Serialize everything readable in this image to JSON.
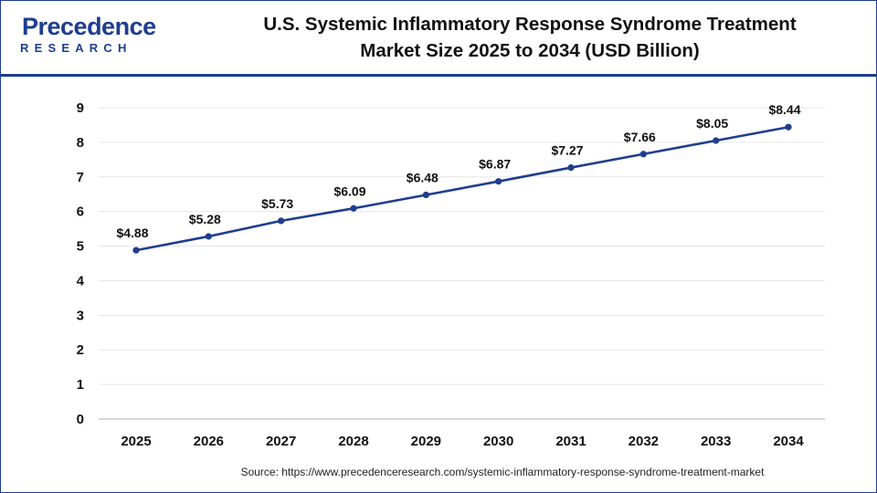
{
  "header": {
    "logo_word": "Precedence",
    "logo_sub": "RESEARCH",
    "title_line1": "U.S. Systemic Inflammatory Response Syndrome Treatment",
    "title_line2": "Market Size 2025 to 2034 (USD Billion)"
  },
  "footer": {
    "source": "Source: https://www.precedenceresearch.com/systemic-inflammatory-response-syndrome-treatment-market"
  },
  "colors": {
    "line": "#1f3d8f",
    "brand": "#1f3d8f",
    "grid": "#e6e6e6"
  },
  "chart_data": {
    "type": "line",
    "title": "U.S. Systemic Inflammatory Response Syndrome Treatment Market Size 2025 to 2034 (USD Billion)",
    "xlabel": "",
    "ylabel": "",
    "categories": [
      "2025",
      "2026",
      "2027",
      "2028",
      "2029",
      "2030",
      "2031",
      "2032",
      "2033",
      "2034"
    ],
    "series": [
      {
        "values": [
          4.88,
          5.28,
          5.73,
          6.09,
          6.48,
          6.87,
          7.27,
          7.66,
          8.05,
          8.44
        ],
        "labels": [
          "$4.88",
          "$5.28",
          "$5.73",
          "$6.09",
          "$6.48",
          "$6.87",
          "$7.27",
          "$7.66",
          "$8.05",
          "$8.44"
        ]
      }
    ],
    "ylim": [
      0,
      9
    ],
    "yticks": [
      "0",
      "1",
      "2",
      "3",
      "4",
      "5",
      "6",
      "7",
      "8",
      "9"
    ],
    "grid": true,
    "legend": "none"
  }
}
